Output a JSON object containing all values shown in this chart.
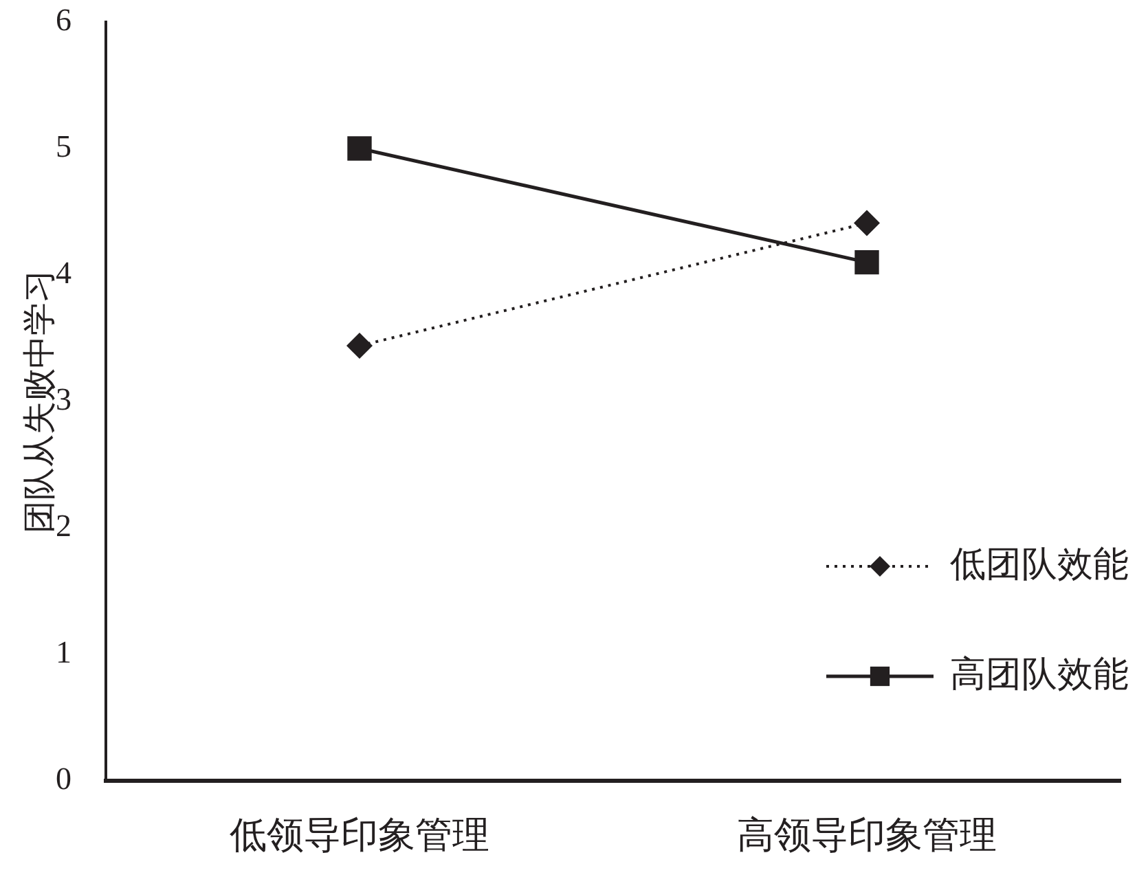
{
  "chart_data": {
    "type": "line",
    "ylabel": "团队从失败中学习",
    "categories": [
      "低领导印象管理",
      "高领导印象管理"
    ],
    "series": [
      {
        "name": "低团队效能",
        "color": "#231f20",
        "values": [
          3.44,
          4.41
        ],
        "marker": "diamond",
        "line_style": "dotted"
      },
      {
        "name": "高团队效能",
        "color": "#231f20",
        "values": [
          5.0,
          4.1
        ],
        "marker": "square",
        "line_style": "solid"
      }
    ],
    "ylim": [
      0,
      6
    ],
    "yticks": [
      0,
      1,
      2,
      3,
      4,
      5,
      6
    ],
    "grid": false,
    "legend": "bottom right"
  }
}
